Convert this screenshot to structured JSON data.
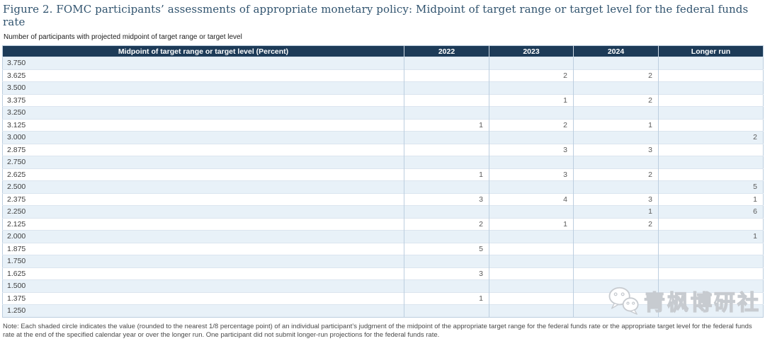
{
  "colors": {
    "header_bg": "#1d3b58",
    "row_shaded": "#e8f1f8",
    "title_text": "#30536e",
    "table_border": "#bccedf"
  },
  "figure": {
    "title": "Figure 2. FOMC participants’ assessments of appropriate monetary policy: Midpoint of target range or target level for the federal funds rate",
    "subtitle": "Number of participants with projected midpoint of target range or target level",
    "note": "Note: Each shaded circle indicates the value (rounded to the nearest 1/8 percentage point) of an individual participant’s judgment of the midpoint of the appropriate target range for the federal funds rate or the appropriate target level for the federal funds rate at the end of the specified calendar year or over the longer run. One participant did not submit longer-run projections for the federal funds rate."
  },
  "table": {
    "columns": [
      "Midpoint of target range or target level (Percent)",
      "2022",
      "2023",
      "2024",
      "Longer run"
    ],
    "rows": [
      [
        "3.750",
        "",
        "",
        "",
        ""
      ],
      [
        "3.625",
        "",
        "2",
        "2",
        ""
      ],
      [
        "3.500",
        "",
        "",
        "",
        ""
      ],
      [
        "3.375",
        "",
        "1",
        "2",
        ""
      ],
      [
        "3.250",
        "",
        "",
        "",
        ""
      ],
      [
        "3.125",
        "1",
        "2",
        "1",
        ""
      ],
      [
        "3.000",
        "",
        "",
        "",
        "2"
      ],
      [
        "2.875",
        "",
        "3",
        "3",
        ""
      ],
      [
        "2.750",
        "",
        "",
        "",
        ""
      ],
      [
        "2.625",
        "1",
        "3",
        "2",
        ""
      ],
      [
        "2.500",
        "",
        "",
        "",
        "5"
      ],
      [
        "2.375",
        "3",
        "4",
        "3",
        "1"
      ],
      [
        "2.250",
        "",
        "",
        "1",
        "6"
      ],
      [
        "2.125",
        "2",
        "1",
        "2",
        ""
      ],
      [
        "2.000",
        "",
        "",
        "",
        "1"
      ],
      [
        "1.875",
        "5",
        "",
        "",
        ""
      ],
      [
        "1.750",
        "",
        "",
        "",
        ""
      ],
      [
        "1.625",
        "3",
        "",
        "",
        ""
      ],
      [
        "1.500",
        "",
        "",
        "",
        ""
      ],
      [
        "1.375",
        "1",
        "",
        "",
        ""
      ],
      [
        "1.250",
        "",
        "",
        "",
        ""
      ]
    ]
  },
  "chart_data": {
    "type": "table",
    "title": "FOMC participants’ assessments of appropriate monetary policy: Midpoint of target range or target level for the federal funds rate",
    "ylabel": "Number of participants",
    "categories": [
      "3.750",
      "3.625",
      "3.500",
      "3.375",
      "3.250",
      "3.125",
      "3.000",
      "2.875",
      "2.750",
      "2.625",
      "2.500",
      "2.375",
      "2.250",
      "2.125",
      "2.000",
      "1.875",
      "1.750",
      "1.625",
      "1.500",
      "1.375",
      "1.250"
    ],
    "series": [
      {
        "name": "2022",
        "values": [
          null,
          null,
          null,
          null,
          null,
          1,
          null,
          null,
          null,
          1,
          null,
          3,
          null,
          2,
          null,
          5,
          null,
          3,
          null,
          1,
          null
        ]
      },
      {
        "name": "2023",
        "values": [
          null,
          2,
          null,
          1,
          null,
          2,
          null,
          3,
          null,
          3,
          null,
          4,
          null,
          1,
          null,
          null,
          null,
          null,
          null,
          null,
          null
        ]
      },
      {
        "name": "2024",
        "values": [
          null,
          2,
          null,
          2,
          null,
          1,
          null,
          3,
          null,
          2,
          null,
          3,
          1,
          2,
          null,
          null,
          null,
          null,
          null,
          null,
          null
        ]
      },
      {
        "name": "Longer run",
        "values": [
          null,
          null,
          null,
          null,
          null,
          null,
          2,
          null,
          null,
          null,
          5,
          1,
          6,
          null,
          1,
          null,
          null,
          null,
          null,
          null,
          null
        ]
      }
    ]
  },
  "watermark": {
    "text": "青枫博研社",
    "icon": "wechat-icon"
  }
}
